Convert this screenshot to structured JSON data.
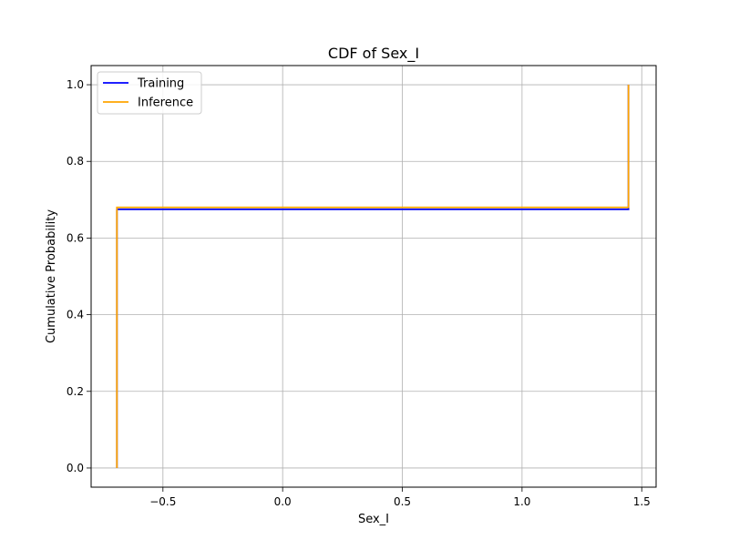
{
  "chart_data": {
    "type": "line",
    "title": "CDF of Sex_I",
    "xlabel": "Sex_I",
    "ylabel": "Cumulative Probability",
    "xlim": [
      -0.8,
      1.56
    ],
    "ylim": [
      -0.05,
      1.05
    ],
    "xticks": [
      -0.5,
      0.0,
      0.5,
      1.0,
      1.5
    ],
    "xtick_labels": [
      "−0.5",
      "0.0",
      "0.5",
      "1.0",
      "1.5"
    ],
    "yticks": [
      0.0,
      0.2,
      0.4,
      0.6,
      0.8,
      1.0
    ],
    "ytick_labels": [
      "0.0",
      "0.2",
      "0.4",
      "0.6",
      "0.8",
      "1.0"
    ],
    "grid": true,
    "legend_position": "upper-left",
    "series": [
      {
        "name": "Training",
        "color": "#0000ff",
        "step": true,
        "x": [
          -0.6923,
          -0.6923,
          1.4446,
          1.4446
        ],
        "y": [
          0.0,
          0.675,
          0.675,
          1.0
        ]
      },
      {
        "name": "Inference",
        "color": "#ffa500",
        "step": true,
        "x": [
          -0.6923,
          -0.6923,
          1.4446,
          1.4446
        ],
        "y": [
          0.0,
          0.68,
          0.68,
          1.0
        ]
      }
    ]
  }
}
